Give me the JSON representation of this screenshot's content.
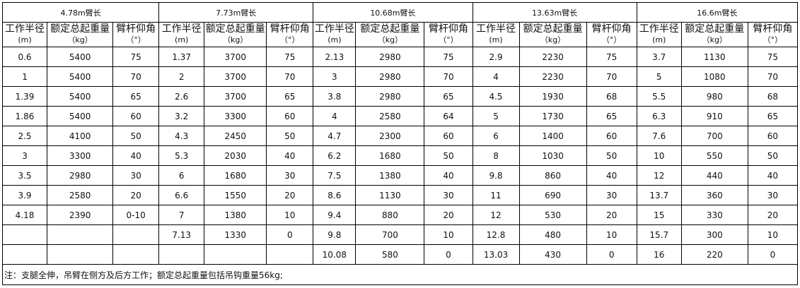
{
  "headers": {
    "radius": "工作半径",
    "radius_unit": "(m)",
    "load": "额定总起重量",
    "load_unit": "（kg）",
    "angle": "臂杆仰角",
    "angle_unit": "（°）"
  },
  "sections": [
    {
      "title": "4.78m臂长",
      "rows": [
        [
          "0.6",
          "5400",
          "75"
        ],
        [
          "1",
          "5400",
          "70"
        ],
        [
          "1.39",
          "5400",
          "65"
        ],
        [
          "1.86",
          "5400",
          "60"
        ],
        [
          "2.5",
          "4100",
          "50"
        ],
        [
          "3",
          "3300",
          "40"
        ],
        [
          "3.5",
          "2980",
          "30"
        ],
        [
          "3.9",
          "2580",
          "20"
        ],
        [
          "4.18",
          "2390",
          "0-10"
        ],
        [
          "",
          "",
          ""
        ],
        [
          "",
          "",
          ""
        ]
      ]
    },
    {
      "title": "7.73m臂长",
      "rows": [
        [
          "1.37",
          "3700",
          "75"
        ],
        [
          "2",
          "3700",
          "70"
        ],
        [
          "2.6",
          "3700",
          "65"
        ],
        [
          "3.2",
          "3300",
          "60"
        ],
        [
          "4.3",
          "2450",
          "50"
        ],
        [
          "5.3",
          "2030",
          "40"
        ],
        [
          "6",
          "1680",
          "30"
        ],
        [
          "6.6",
          "1550",
          "20"
        ],
        [
          "7",
          "1380",
          "10"
        ],
        [
          "7.13",
          "1330",
          "0"
        ],
        [
          "",
          "",
          ""
        ]
      ]
    },
    {
      "title": "10.68m臂长",
      "rows": [
        [
          "2.13",
          "2980",
          "75"
        ],
        [
          "3",
          "2980",
          "70"
        ],
        [
          "3.8",
          "2980",
          "65"
        ],
        [
          "4",
          "2580",
          "64"
        ],
        [
          "4.7",
          "2300",
          "60"
        ],
        [
          "6.2",
          "1680",
          "50"
        ],
        [
          "7.5",
          "1380",
          "40"
        ],
        [
          "8.6",
          "1130",
          "30"
        ],
        [
          "9.4",
          "880",
          "20"
        ],
        [
          "9.8",
          "700",
          "10"
        ],
        [
          "10.08",
          "580",
          "0"
        ]
      ]
    },
    {
      "title": "13.63m臂长",
      "rows": [
        [
          "2.9",
          "2230",
          "75"
        ],
        [
          "4",
          "2230",
          "70"
        ],
        [
          "4.5",
          "1930",
          "68"
        ],
        [
          "5",
          "1730",
          "65"
        ],
        [
          "6",
          "1400",
          "60"
        ],
        [
          "8",
          "1030",
          "50"
        ],
        [
          "9.8",
          "860",
          "40"
        ],
        [
          "11",
          "690",
          "30"
        ],
        [
          "12",
          "530",
          "20"
        ],
        [
          "12.8",
          "480",
          "10"
        ],
        [
          "13.03",
          "430",
          "0"
        ]
      ]
    },
    {
      "title": "16.6m臂长",
      "rows": [
        [
          "3.7",
          "1130",
          "75"
        ],
        [
          "5",
          "1080",
          "70"
        ],
        [
          "5.5",
          "980",
          "68"
        ],
        [
          "6.3",
          "910",
          "65"
        ],
        [
          "7.6",
          "700",
          "60"
        ],
        [
          "10",
          "550",
          "50"
        ],
        [
          "12",
          "440",
          "40"
        ],
        [
          "13.7",
          "360",
          "30"
        ],
        [
          "15",
          "330",
          "20"
        ],
        [
          "15.7",
          "300",
          "10"
        ],
        [
          "16",
          "220",
          "0"
        ]
      ]
    }
  ],
  "note": "注：支腿全伸，吊臂在侧方及后方工作；额定总起重量包括吊钩重量56kg;"
}
